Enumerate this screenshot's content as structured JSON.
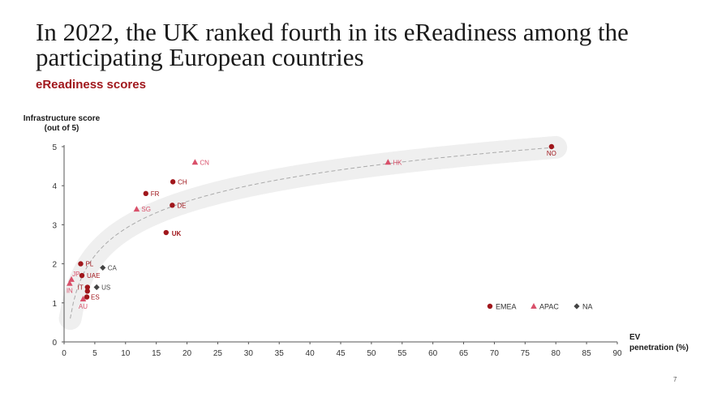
{
  "title": "In 2022, the UK ranked fourth in its eReadiness among the participating European countries",
  "subtitle": "eReadiness scores",
  "page_number": "7",
  "colors": {
    "emea": "#a0171c",
    "apac": "#d9506a",
    "na": "#444444",
    "axis": "#555555",
    "band": "#efefef",
    "trend": "#aaaaaa"
  },
  "chart_data": {
    "type": "scatter",
    "ylabel": "Infrastructure score (out of 5)",
    "ylabel_lines": [
      "Infrastructure score",
      "(out of 5)"
    ],
    "xlabel": "EV penetration (%)",
    "xlabel_lines": [
      "EV",
      "penetration (%)"
    ],
    "xlim": [
      0,
      90
    ],
    "ylim": [
      0,
      5
    ],
    "xticks": [
      0,
      5,
      10,
      15,
      20,
      25,
      30,
      35,
      40,
      45,
      50,
      55,
      60,
      65,
      70,
      75,
      80,
      85,
      90
    ],
    "yticks": [
      0,
      1,
      2,
      3,
      4,
      5
    ],
    "legend": [
      {
        "key": "EMEA",
        "label": "EMEA",
        "marker": "circle"
      },
      {
        "key": "APAC",
        "label": "APAC",
        "marker": "triangle"
      },
      {
        "key": "NA",
        "label": "NA",
        "marker": "diamond"
      }
    ],
    "legend_position": "bottom-right",
    "trendline": "logarithmic",
    "points": [
      {
        "label": "NO",
        "x": 79.3,
        "y": 5.0,
        "region": "EMEA"
      },
      {
        "label": "HK",
        "x": 52.7,
        "y": 4.6,
        "region": "APAC"
      },
      {
        "label": "CN",
        "x": 21.3,
        "y": 4.6,
        "region": "APAC"
      },
      {
        "label": "CH",
        "x": 17.7,
        "y": 4.1,
        "region": "EMEA"
      },
      {
        "label": "FR",
        "x": 13.3,
        "y": 3.8,
        "region": "EMEA"
      },
      {
        "label": "DE",
        "x": 17.6,
        "y": 3.5,
        "region": "EMEA"
      },
      {
        "label": "SG",
        "x": 11.8,
        "y": 3.4,
        "region": "APAC"
      },
      {
        "label": "UK",
        "x": 16.6,
        "y": 2.8,
        "region": "EMEA",
        "bold": true
      },
      {
        "label": "PL",
        "x": 2.7,
        "y": 2.0,
        "region": "EMEA"
      },
      {
        "label": "CA",
        "x": 6.3,
        "y": 1.9,
        "region": "NA"
      },
      {
        "label": "UAE",
        "x": 2.9,
        "y": 1.7,
        "region": "EMEA"
      },
      {
        "label": "JP",
        "x": 1.2,
        "y": 1.6,
        "region": "APAC"
      },
      {
        "label": "IN",
        "x": 0.9,
        "y": 1.5,
        "region": "APAC"
      },
      {
        "label": "US",
        "x": 5.3,
        "y": 1.4,
        "region": "NA"
      },
      {
        "label": "IT",
        "x": 3.8,
        "y": 1.4,
        "region": "EMEA"
      },
      {
        "label": "",
        "x": 3.8,
        "y": 1.3,
        "region": "EMEA"
      },
      {
        "label": "ES",
        "x": 3.7,
        "y": 1.15,
        "region": "EMEA"
      },
      {
        "label": "AU",
        "x": 3.1,
        "y": 1.1,
        "region": "APAC"
      }
    ]
  }
}
